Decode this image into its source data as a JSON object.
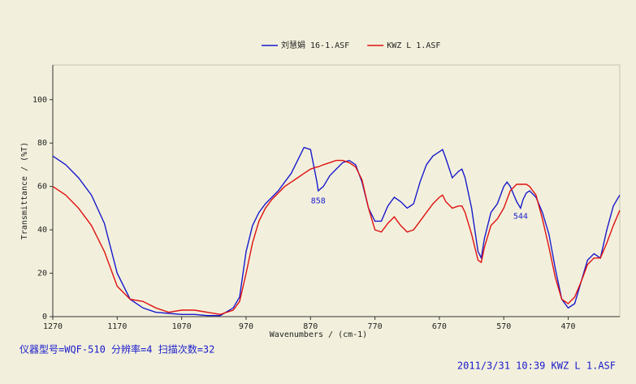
{
  "chart_data": {
    "type": "line",
    "x_label": "Wavenumbers / (cm-1)",
    "y_label": "Transmittance / (%T)",
    "x": [
      1270,
      1250,
      1230,
      1210,
      1190,
      1170,
      1150,
      1130,
      1110,
      1090,
      1070,
      1050,
      1030,
      1010,
      990,
      980,
      970,
      960,
      950,
      940,
      930,
      920,
      910,
      900,
      890,
      880,
      870,
      860,
      858,
      850,
      840,
      830,
      820,
      810,
      800,
      790,
      780,
      770,
      760,
      750,
      740,
      730,
      720,
      710,
      700,
      690,
      680,
      670,
      665,
      660,
      650,
      640,
      635,
      630,
      620,
      610,
      605,
      600,
      590,
      580,
      570,
      565,
      560,
      550,
      544,
      540,
      535,
      530,
      520,
      510,
      500,
      490,
      480,
      470,
      460,
      450,
      440,
      430,
      420,
      410,
      400,
      390
    ],
    "series": [
      {
        "name": "刘慧娟 16-1.ASF",
        "color": "#1a1acc",
        "values": [
          74,
          70,
          64,
          56,
          43,
          20,
          8,
          4,
          2,
          1.5,
          1,
          1,
          0.5,
          0.5,
          4,
          9,
          30,
          42,
          48,
          52,
          55,
          58,
          62,
          66,
          72,
          78,
          77,
          62,
          58,
          60,
          65,
          68,
          71,
          72,
          70,
          62,
          50,
          44,
          44,
          51,
          55,
          53,
          50,
          52,
          62,
          70,
          74,
          76,
          77,
          73,
          64,
          67,
          68,
          64,
          50,
          30,
          27,
          36,
          48,
          52,
          60,
          62,
          60,
          53,
          50,
          54,
          57,
          58,
          55,
          48,
          38,
          22,
          8,
          4,
          6,
          16,
          26,
          29,
          27,
          40,
          51,
          56
        ]
      },
      {
        "name": "KWZ L 1.ASF",
        "color": "#e01010",
        "values": [
          60,
          56,
          50,
          42,
          30,
          14,
          8,
          7,
          4,
          2,
          3,
          3,
          2,
          1,
          3,
          7,
          20,
          34,
          44,
          50,
          54,
          57,
          60,
          62,
          64,
          66,
          68,
          69,
          69,
          70,
          71,
          72,
          72,
          71,
          69,
          63,
          50,
          40,
          39,
          43,
          46,
          42,
          39,
          40,
          44,
          48,
          52,
          55,
          56,
          53,
          50,
          51,
          51,
          48,
          38,
          26,
          25,
          32,
          42,
          45,
          50,
          54,
          58,
          61,
          61,
          61,
          61,
          60,
          56,
          45,
          32,
          18,
          8,
          6,
          9,
          16,
          24,
          27,
          27,
          34,
          42,
          49
        ]
      }
    ],
    "annotations": [
      {
        "label": "858",
        "x": 858,
        "y": 57
      },
      {
        "label": "544",
        "x": 544,
        "y": 50
      }
    ],
    "xlim": [
      1270,
      390
    ],
    "ylim": [
      0,
      116
    ],
    "xticks": [
      1270,
      1170,
      1070,
      970,
      870,
      770,
      670,
      570,
      470
    ],
    "yticks": [
      0,
      20,
      40,
      60,
      80,
      100
    ],
    "footer_left": "仪器型号=WQF-510 分辨率=4 扫描次数=32",
    "footer_right": "2011/3/31 10:39 KWZ L 1.ASF"
  }
}
